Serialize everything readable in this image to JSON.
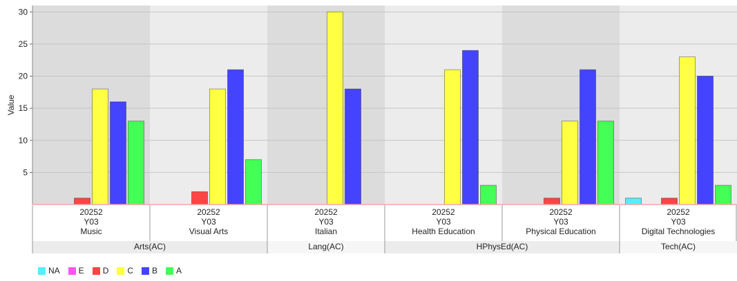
{
  "chart_data": {
    "type": "bar",
    "ylabel": "Value",
    "ylim": [
      0,
      31
    ],
    "yticks": [
      5,
      10,
      15,
      20,
      25,
      30
    ],
    "grades": [
      "NA",
      "E",
      "D",
      "C",
      "B",
      "A"
    ],
    "colors": {
      "NA": "#55eeff",
      "E": "#ff55ee",
      "D": "#ff4444",
      "C": "#ffff44",
      "B": "#4444ff",
      "A": "#44ff55"
    },
    "groups": [
      {
        "label": "Arts(AC)",
        "columns": [
          {
            "period": "20252",
            "year": "Y03",
            "subject": "Music",
            "values": {
              "NA": 0,
              "E": 0,
              "D": 1,
              "C": 18,
              "B": 16,
              "A": 13
            }
          },
          {
            "period": "20252",
            "year": "Y03",
            "subject": "Visual Arts",
            "values": {
              "NA": 0,
              "E": 0,
              "D": 2,
              "C": 18,
              "B": 21,
              "A": 7
            }
          }
        ]
      },
      {
        "label": "Lang(AC)",
        "columns": [
          {
            "period": "20252",
            "year": "Y03",
            "subject": "Italian",
            "values": {
              "NA": 0,
              "E": 0,
              "D": 0,
              "C": 30,
              "B": 18,
              "A": 0
            }
          }
        ]
      },
      {
        "label": "HPhysEd(AC)",
        "columns": [
          {
            "period": "20252",
            "year": "Y03",
            "subject": "Health Education",
            "values": {
              "NA": 0,
              "E": 0,
              "D": 0,
              "C": 21,
              "B": 24,
              "A": 3
            }
          },
          {
            "period": "20252",
            "year": "Y03",
            "subject": "Physical Education",
            "values": {
              "NA": 0,
              "E": 0,
              "D": 1,
              "C": 13,
              "B": 21,
              "A": 13
            }
          }
        ]
      },
      {
        "label": "Tech(AC)",
        "columns": [
          {
            "period": "20252",
            "year": "Y03",
            "subject": "Digital Technologies",
            "values": {
              "NA": 1,
              "E": 0,
              "D": 1,
              "C": 23,
              "B": 20,
              "A": 3
            }
          }
        ]
      }
    ]
  }
}
